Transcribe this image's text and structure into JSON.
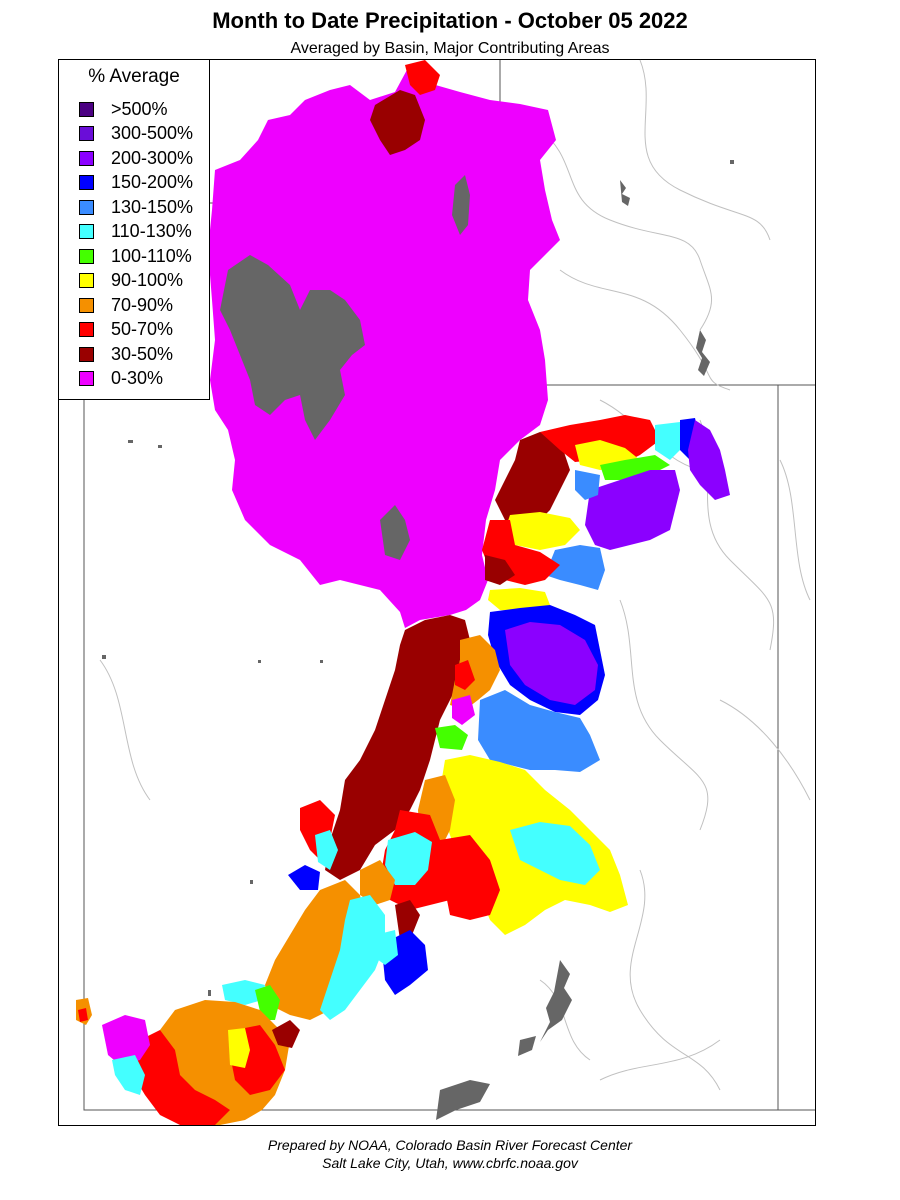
{
  "title": "Month to Date Precipitation - October 05 2022",
  "subtitle": "Averaged by Basin, Major Contributing Areas",
  "legend": {
    "title": "% Average",
    "items": [
      {
        "label": ">500%",
        "color": "#4b0082"
      },
      {
        "label": "300-500%",
        "color": "#6a0dd8"
      },
      {
        "label": "200-300%",
        "color": "#8b00ff"
      },
      {
        "label": "150-200%",
        "color": "#0000ff"
      },
      {
        "label": "130-150%",
        "color": "#3a8cff"
      },
      {
        "label": "110-130%",
        "color": "#44ffff"
      },
      {
        "label": "100-110%",
        "color": "#44ff00"
      },
      {
        "label": "90-100%",
        "color": "#ffff00"
      },
      {
        "label": "70-90%",
        "color": "#f59000"
      },
      {
        "label": "50-70%",
        "color": "#ff0000"
      },
      {
        "label": "30-50%",
        "color": "#990000"
      },
      {
        "label": "0-30%",
        "color": "#ee00ff"
      }
    ]
  },
  "footer": {
    "line1": "Prepared by NOAA, Colorado Basin River Forecast Center",
    "line2": "Salt Lake City, Utah, www.cbrfc.noaa.gov"
  },
  "colors": {
    "no_data": "#666666",
    "border": "#555555",
    "rivers": "#bbbbbb"
  }
}
